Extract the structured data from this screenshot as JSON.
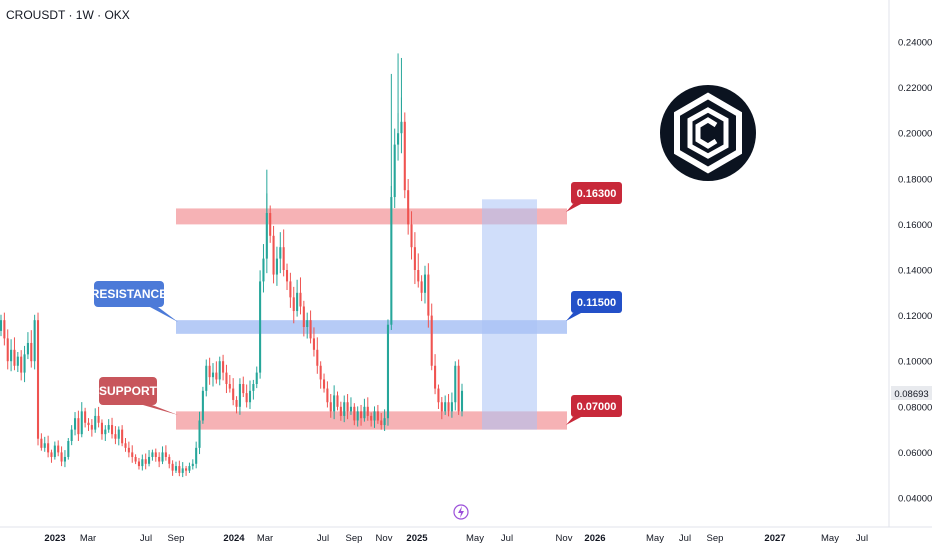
{
  "header": {
    "ticker": "CROUSDT · 1W · OKX"
  },
  "colors": {
    "up": "#26a69a",
    "down": "#ef5350",
    "zone_red": "#f4a5a8",
    "zone_blue": "#a9c2f5",
    "projection": "#a9c2f5",
    "support_label": "#c8565c",
    "resistance_label": "#4c7ad8",
    "tag_red": "#c8293a",
    "tag_blue": "#2350c8",
    "logo": "#0b1320"
  },
  "annotations": {
    "resistance_label": "RESISTANCE",
    "support_label": "SUPPORT",
    "tag_top": "0.16300",
    "tag_mid": "0.11500",
    "tag_bottom": "0.07000",
    "last_price": "0.08693"
  },
  "icons": {
    "logo": "cronos-logo-icon",
    "event": "lightning-icon"
  },
  "chart_data": {
    "type": "candlestick",
    "title": "CROUSDT · 1W · OKX",
    "ylim": [
      0.03,
      0.25
    ],
    "y_ticks": [
      "0.24000",
      "0.22000",
      "0.20000",
      "0.18000",
      "0.16000",
      "0.14000",
      "0.12000",
      "0.10000",
      "0.08000",
      "0.06000",
      "0.04000"
    ],
    "x_ticks": [
      {
        "label": "2023",
        "bold": true
      },
      {
        "label": "Mar",
        "bold": false
      },
      {
        "label": "Jul",
        "bold": false
      },
      {
        "label": "Sep",
        "bold": false
      },
      {
        "label": "2024",
        "bold": true
      },
      {
        "label": "Mar",
        "bold": false
      },
      {
        "label": "Jul",
        "bold": false
      },
      {
        "label": "Sep",
        "bold": false
      },
      {
        "label": "Nov",
        "bold": false
      },
      {
        "label": "2025",
        "bold": true
      },
      {
        "label": "May",
        "bold": false
      },
      {
        "label": "Jul",
        "bold": false
      },
      {
        "label": "Nov",
        "bold": false
      },
      {
        "label": "2026",
        "bold": true
      },
      {
        "label": "May",
        "bold": false
      },
      {
        "label": "Jul",
        "bold": false
      },
      {
        "label": "Sep",
        "bold": false
      },
      {
        "label": "2027",
        "bold": true
      },
      {
        "label": "May",
        "bold": false
      },
      {
        "label": "Jul",
        "bold": false
      }
    ],
    "zones": [
      {
        "name": "0.16300",
        "low": 0.16,
        "high": 0.167
      },
      {
        "name": "0.11500",
        "low": 0.112,
        "high": 0.118
      },
      {
        "name": "0.07000",
        "low": 0.07,
        "high": 0.078
      }
    ],
    "closes": [
      0.118,
      0.11,
      0.1,
      0.105,
      0.098,
      0.102,
      0.095,
      0.103,
      0.108,
      0.1,
      0.118,
      0.066,
      0.062,
      0.064,
      0.06,
      0.058,
      0.063,
      0.06,
      0.056,
      0.058,
      0.065,
      0.07,
      0.075,
      0.068,
      0.078,
      0.073,
      0.072,
      0.07,
      0.076,
      0.073,
      0.068,
      0.07,
      0.072,
      0.068,
      0.066,
      0.07,
      0.064,
      0.062,
      0.06,
      0.058,
      0.056,
      0.054,
      0.057,
      0.055,
      0.058,
      0.06,
      0.058,
      0.056,
      0.06,
      0.058,
      0.055,
      0.052,
      0.054,
      0.051,
      0.053,
      0.052,
      0.054,
      0.055,
      0.062,
      0.074,
      0.087,
      0.098,
      0.093,
      0.095,
      0.092,
      0.1,
      0.095,
      0.09,
      0.088,
      0.083,
      0.08,
      0.09,
      0.086,
      0.082,
      0.087,
      0.09,
      0.095,
      0.135,
      0.145,
      0.165,
      0.155,
      0.138,
      0.145,
      0.15,
      0.14,
      0.135,
      0.128,
      0.122,
      0.13,
      0.124,
      0.115,
      0.118,
      0.11,
      0.105,
      0.098,
      0.092,
      0.088,
      0.082,
      0.078,
      0.085,
      0.08,
      0.076,
      0.082,
      0.078,
      0.08,
      0.074,
      0.078,
      0.075,
      0.08,
      0.076,
      0.074,
      0.078,
      0.074,
      0.072,
      0.075,
      0.116,
      0.172,
      0.195,
      0.2,
      0.205,
      0.175,
      0.16,
      0.15,
      0.14,
      0.135,
      0.13,
      0.138,
      0.12,
      0.098,
      0.088,
      0.082,
      0.078,
      0.082,
      0.078,
      0.082,
      0.098,
      0.078,
      0.087
    ]
  }
}
